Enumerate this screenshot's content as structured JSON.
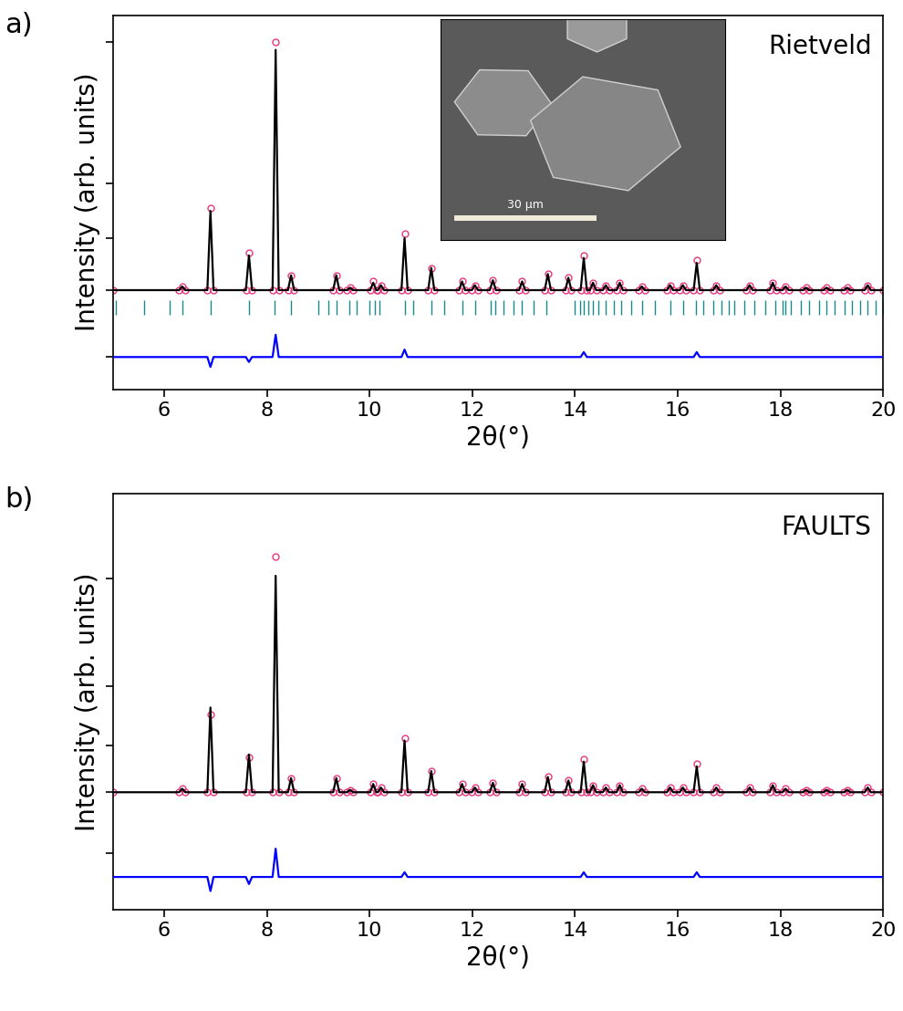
{
  "chart_data": [
    {
      "type": "line",
      "panel_label": "a)",
      "annotation": "Rietveld",
      "x_label": "2θ(°)",
      "y_label": "Intensity (arb. units)",
      "xlim": [
        5,
        20
      ],
      "xticks": [
        6,
        8,
        10,
        12,
        14,
        16,
        18,
        20
      ],
      "ylim": [
        -40,
        111
      ],
      "yticks": [
        -27,
        0,
        21,
        43,
        100
      ],
      "tick_labels": "x",
      "x": [
        5.0,
        6.29,
        6.35,
        6.41,
        6.84,
        6.9,
        6.96,
        7.59,
        7.65,
        7.71,
        8.11,
        8.17,
        8.23,
        8.41,
        8.47,
        8.53,
        9.29,
        9.35,
        9.41,
        9.56,
        9.62,
        9.68,
        10.01,
        10.07,
        10.13,
        10.16,
        10.22,
        10.28,
        10.62,
        10.68,
        10.74,
        11.14,
        11.2,
        11.26,
        11.74,
        11.8,
        11.86,
        11.99,
        12.05,
        12.11,
        12.34,
        12.4,
        12.46,
        12.91,
        12.97,
        13.03,
        13.41,
        13.47,
        13.53,
        13.81,
        13.87,
        13.93,
        14.11,
        14.17,
        14.23,
        14.29,
        14.35,
        14.41,
        14.54,
        14.6,
        14.66,
        14.81,
        14.87,
        14.93,
        15.24,
        15.3,
        15.36,
        15.79,
        15.85,
        15.91,
        16.04,
        16.1,
        16.16,
        16.31,
        16.37,
        16.43,
        16.69,
        16.75,
        16.81,
        17.34,
        17.4,
        17.46,
        17.79,
        17.85,
        17.91,
        18.04,
        18.1,
        18.16,
        18.44,
        18.5,
        18.56,
        18.84,
        18.9,
        18.96,
        19.24,
        19.3,
        19.36,
        19.64,
        19.7,
        19.76,
        20.0
      ],
      "series": [
        {
          "type": "scatter",
          "color": "#e8377f",
          "marker": "o",
          "values": [
            0,
            0,
            1.5,
            0,
            0,
            33,
            0,
            0,
            15,
            0,
            0,
            100,
            0,
            0,
            6,
            0,
            0,
            6,
            0,
            0,
            1,
            0,
            0,
            3.5,
            0,
            0,
            2,
            0,
            0,
            23,
            0,
            0,
            9,
            0,
            0,
            3.5,
            0,
            0,
            2,
            0,
            0,
            4,
            0,
            0,
            3.5,
            0,
            0,
            6.5,
            0,
            0,
            5,
            0,
            0,
            14,
            0,
            0,
            3,
            0,
            0,
            2,
            0,
            0,
            3,
            0,
            0,
            1.5,
            0,
            0,
            2,
            0,
            0,
            2,
            0,
            0,
            12,
            0,
            0,
            2,
            0,
            0,
            2,
            0,
            0,
            3,
            0,
            0,
            1.5,
            0,
            0,
            1,
            0,
            0,
            1,
            0,
            0,
            1,
            0,
            0,
            2,
            0,
            0
          ]
        },
        {
          "type": "line",
          "color": "#000000",
          "line_style": "solid",
          "values": [
            0,
            0,
            1.5,
            0,
            0,
            32,
            0,
            0,
            14,
            0,
            0,
            97,
            0,
            0,
            6,
            0,
            0,
            6,
            0,
            0,
            1,
            0,
            0,
            3,
            0,
            0,
            2,
            0,
            0,
            21,
            0,
            0,
            9,
            0,
            0,
            3.5,
            0,
            0,
            2,
            0,
            0,
            4,
            0,
            0,
            3.5,
            0,
            0,
            6.5,
            0,
            0,
            5,
            0,
            0,
            13,
            0,
            0,
            3,
            0,
            0,
            2,
            0,
            0,
            3,
            0,
            0,
            1.5,
            0,
            0,
            2,
            0,
            0,
            2,
            0,
            0,
            11,
            0,
            0,
            2,
            0,
            0,
            2,
            0,
            0,
            3,
            0,
            0,
            1.5,
            0,
            0,
            1,
            0,
            0,
            1,
            0,
            0,
            1,
            0,
            0,
            2,
            0,
            0
          ]
        },
        {
          "type": "line",
          "color": "#0000ff",
          "line_style": "solid",
          "values": [
            -27,
            -27,
            -27,
            -27,
            -27,
            -31,
            -27,
            -27,
            -29,
            -27,
            -27,
            -18,
            -27,
            -27,
            -27,
            -27,
            -27,
            -27,
            -27,
            -27,
            -27,
            -27,
            -27,
            -27,
            -27,
            -27,
            -27,
            -27,
            -27,
            -24,
            -27,
            -27,
            -27,
            -27,
            -27,
            -27,
            -27,
            -27,
            -27,
            -27,
            -27,
            -27,
            -27,
            -27,
            -27,
            -27,
            -27,
            -27,
            -27,
            -27,
            -27,
            -27,
            -27,
            -25,
            -27,
            -27,
            -27,
            -27,
            -27,
            -27,
            -27,
            -27,
            -27,
            -27,
            -27,
            -27,
            -27,
            -27,
            -27,
            -27,
            -27,
            -27,
            -27,
            -27,
            -25,
            -27,
            -27,
            -27,
            -27,
            -27,
            -27,
            -27,
            -27,
            -27,
            -27,
            -27,
            -27,
            -27,
            -27,
            -27,
            -27,
            -27,
            -27,
            -27,
            -27,
            -27,
            -27,
            -27,
            -27,
            -27,
            -27
          ]
        }
      ],
      "reflections": {
        "color": "#1a8a8a",
        "y": -7,
        "positions": [
          5.05,
          5.6,
          6.1,
          6.35,
          6.9,
          7.65,
          8.15,
          8.47,
          9.0,
          9.2,
          9.35,
          9.6,
          9.75,
          10.0,
          10.1,
          10.2,
          10.68,
          10.85,
          11.2,
          11.45,
          11.8,
          12.05,
          12.35,
          12.45,
          12.6,
          12.8,
          12.97,
          13.2,
          13.45,
          14.0,
          14.1,
          14.17,
          14.25,
          14.35,
          14.45,
          14.6,
          14.75,
          14.9,
          15.1,
          15.3,
          15.55,
          15.85,
          16.1,
          16.35,
          16.5,
          16.7,
          16.85,
          17.0,
          17.1,
          17.3,
          17.5,
          17.7,
          17.9,
          18.05,
          18.1,
          18.2,
          18.4,
          18.55,
          18.75,
          18.9,
          19.05,
          19.25,
          19.4,
          19.55,
          19.7,
          19.85,
          20.0
        ]
      },
      "inset": {
        "scale_bar_label": "30 µm"
      }
    },
    {
      "type": "line",
      "panel_label": "b)",
      "annotation": "FAULTS",
      "x_label": "2θ(°)",
      "y_label": "Intensity (arb. units)",
      "xlim": [
        5,
        20
      ],
      "xticks": [
        6,
        8,
        10,
        12,
        14,
        16,
        18,
        20
      ],
      "ylim": [
        -50,
        127
      ],
      "yticks": [
        -26,
        0,
        20,
        45,
        91
      ],
      "tick_labels": "x",
      "x": [
        5.0,
        6.29,
        6.35,
        6.41,
        6.84,
        6.9,
        6.96,
        7.59,
        7.65,
        7.71,
        8.11,
        8.17,
        8.23,
        8.41,
        8.47,
        8.53,
        9.29,
        9.35,
        9.41,
        9.56,
        9.62,
        9.68,
        10.01,
        10.07,
        10.13,
        10.16,
        10.22,
        10.28,
        10.62,
        10.68,
        10.74,
        11.14,
        11.2,
        11.26,
        11.74,
        11.8,
        11.86,
        11.99,
        12.05,
        12.11,
        12.34,
        12.4,
        12.46,
        12.91,
        12.97,
        13.03,
        13.41,
        13.47,
        13.53,
        13.81,
        13.87,
        13.93,
        14.11,
        14.17,
        14.23,
        14.29,
        14.35,
        14.41,
        14.54,
        14.6,
        14.66,
        14.81,
        14.87,
        14.93,
        15.24,
        15.3,
        15.36,
        15.79,
        15.85,
        15.91,
        16.04,
        16.1,
        16.16,
        16.31,
        16.37,
        16.43,
        16.69,
        16.75,
        16.81,
        17.34,
        17.4,
        17.46,
        17.79,
        17.85,
        17.91,
        18.04,
        18.1,
        18.16,
        18.44,
        18.5,
        18.56,
        18.84,
        18.9,
        18.96,
        19.24,
        19.3,
        19.36,
        19.64,
        19.7,
        19.76,
        20.0
      ],
      "series": [
        {
          "type": "scatter",
          "color": "#e8377f",
          "marker": "o",
          "values": [
            0,
            0,
            1.5,
            0,
            0,
            33,
            0,
            0,
            15,
            0,
            0,
            100,
            0,
            0,
            6,
            0,
            0,
            6,
            0,
            0,
            1,
            0,
            0,
            3.5,
            0,
            0,
            2,
            0,
            0,
            23,
            0,
            0,
            9,
            0,
            0,
            3.5,
            0,
            0,
            2,
            0,
            0,
            4,
            0,
            0,
            3.5,
            0,
            0,
            6.5,
            0,
            0,
            5,
            0,
            0,
            14,
            0,
            0,
            3,
            0,
            0,
            2,
            0,
            0,
            3,
            0,
            0,
            1.5,
            0,
            0,
            2,
            0,
            0,
            2,
            0,
            0,
            12,
            0,
            0,
            2,
            0,
            0,
            2,
            0,
            0,
            3,
            0,
            0,
            1.5,
            0,
            0,
            1,
            0,
            0,
            1,
            0,
            0,
            1,
            0,
            0,
            2,
            0,
            0
          ]
        },
        {
          "type": "line",
          "color": "#000000",
          "line_style": "solid",
          "values": [
            0,
            0,
            1.5,
            0,
            0,
            36,
            0,
            0,
            16,
            0,
            0,
            92,
            0,
            0,
            6,
            0,
            0,
            6,
            0,
            0,
            1,
            0,
            0,
            3.5,
            0,
            0,
            2,
            0,
            0,
            22,
            0,
            0,
            9,
            0,
            0,
            3.5,
            0,
            0,
            2,
            0,
            0,
            4,
            0,
            0,
            3.5,
            0,
            0,
            6.5,
            0,
            0,
            5,
            0,
            0,
            13,
            0,
            0,
            3,
            0,
            0,
            2,
            0,
            0,
            3,
            0,
            0,
            1.5,
            0,
            0,
            2,
            0,
            0,
            2,
            0,
            0,
            11,
            0,
            0,
            2,
            0,
            0,
            2,
            0,
            0,
            3,
            0,
            0,
            1.5,
            0,
            0,
            1,
            0,
            0,
            1,
            0,
            0,
            1,
            0,
            0,
            2,
            0,
            0
          ]
        },
        {
          "type": "line",
          "color": "#0000ff",
          "line_style": "solid",
          "values": [
            -36,
            -36,
            -36,
            -36,
            -36,
            -42,
            -36,
            -36,
            -39,
            -36,
            -36,
            -24,
            -36,
            -36,
            -36,
            -36,
            -36,
            -36,
            -36,
            -36,
            -36,
            -36,
            -36,
            -36,
            -36,
            -36,
            -36,
            -36,
            -36,
            -34,
            -36,
            -36,
            -36,
            -36,
            -36,
            -36,
            -36,
            -36,
            -36,
            -36,
            -36,
            -36,
            -36,
            -36,
            -36,
            -36,
            -36,
            -36,
            -36,
            -36,
            -36,
            -36,
            -36,
            -34,
            -36,
            -36,
            -36,
            -36,
            -36,
            -36,
            -36,
            -36,
            -36,
            -36,
            -36,
            -36,
            -36,
            -36,
            -36,
            -36,
            -36,
            -36,
            -36,
            -36,
            -34,
            -36,
            -36,
            -36,
            -36,
            -36,
            -36,
            -36,
            -36,
            -36,
            -36,
            -36,
            -36,
            -36,
            -36,
            -36,
            -36,
            -36,
            -36,
            -36,
            -36,
            -36,
            -36,
            -36,
            -36,
            -36,
            -36
          ]
        }
      ]
    }
  ]
}
